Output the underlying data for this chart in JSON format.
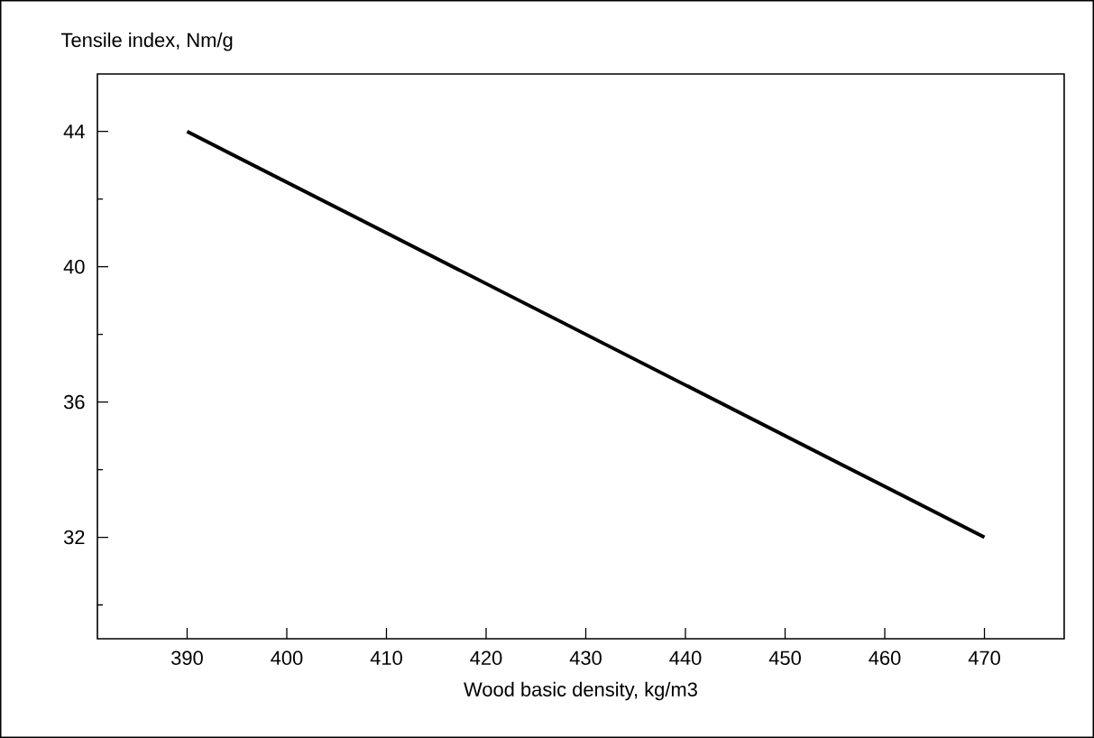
{
  "chart_data": {
    "type": "line",
    "xlabel": "Wood basic density, kg/m3",
    "ylabel": "Tensile index, Nm/g",
    "x": [
      390,
      470
    ],
    "series": [
      {
        "color": "#000000",
        "values": [
          44,
          32
        ],
        "line_style": "solid",
        "marker": "none"
      }
    ],
    "xlim": [
      381,
      478
    ],
    "ylim": [
      29,
      45.7
    ],
    "xticks": [
      390,
      400,
      410,
      420,
      430,
      440,
      450,
      460,
      470
    ],
    "yticks": [
      {
        "value": 30,
        "label": null
      },
      32,
      {
        "value": 34,
        "label": null
      },
      36,
      {
        "value": 38,
        "label": null
      },
      40,
      {
        "value": 42,
        "label": null
      },
      44
    ],
    "grid": false
  }
}
